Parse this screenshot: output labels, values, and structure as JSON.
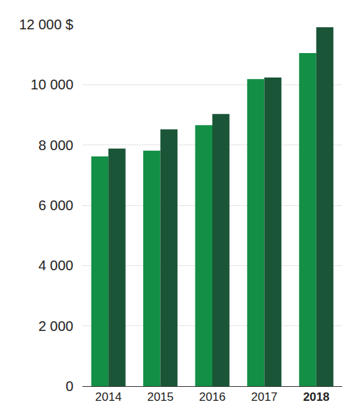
{
  "chart_data": {
    "type": "bar",
    "categories": [
      "2014",
      "2015",
      "2016",
      "2017",
      "2018"
    ],
    "series": [
      {
        "color": "#138f46",
        "values": [
          7620,
          7810,
          8660,
          10190,
          11050
        ]
      },
      {
        "color": "#1b5538",
        "values": [
          7880,
          8520,
          9030,
          10240,
          11910
        ]
      }
    ],
    "ylim": [
      0,
      12000
    ],
    "yticks": [
      0,
      {
        "value": 2000,
        "label": "2 000"
      },
      {
        "value": 4000,
        "label": "4 000"
      },
      {
        "value": 6000,
        "label": "6 000"
      },
      {
        "value": 8000,
        "label": "8 000"
      },
      {
        "value": 10000,
        "label": "10 000"
      },
      {
        "value": 12000,
        "label": "12 000 $"
      }
    ],
    "grid": true
  }
}
